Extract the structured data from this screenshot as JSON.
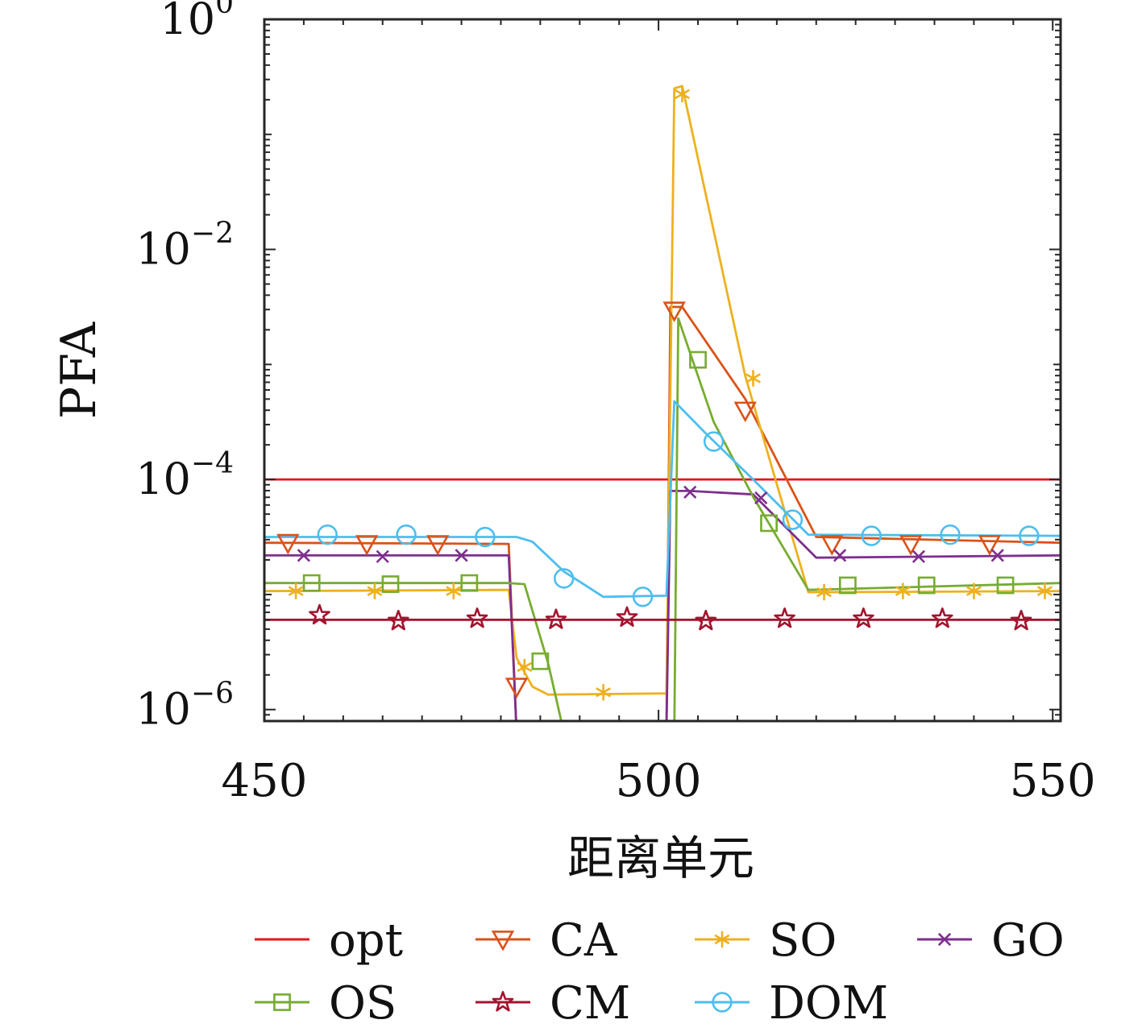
{
  "chart_data": {
    "type": "line",
    "xlabel": "距离单元",
    "ylabel": "PFA",
    "xlim": [
      450,
      551
    ],
    "ylim_log10": [
      -6.1,
      0
    ],
    "yscale": "log",
    "x_ticks": [
      450,
      500,
      550
    ],
    "x_tick_labels": [
      "450",
      "500",
      "550"
    ],
    "y_ticks": [
      {
        "exp": 0,
        "base": "10",
        "sup": "0"
      },
      {
        "exp": -2,
        "base": "10",
        "sup": "−2"
      },
      {
        "exp": -4,
        "base": "10",
        "sup": "−4"
      },
      {
        "exp": -6,
        "base": "10",
        "sup": "−6"
      }
    ],
    "legend_position": "bottom",
    "series": [
      {
        "name": "opt",
        "color": "#e8141b",
        "marker": "none",
        "points": [
          [
            450,
            -4.0
          ],
          [
            551,
            -4.0
          ]
        ]
      },
      {
        "name": "CA",
        "color": "#d95319",
        "marker": "triangle-down",
        "points": [
          [
            450,
            -4.55
          ],
          [
            481,
            -4.56
          ],
          [
            482,
            -6.2
          ],
          [
            501,
            -6.2
          ],
          [
            501.5,
            -2.5
          ],
          [
            503,
            -2.5
          ],
          [
            511,
            -3.3
          ],
          [
            520,
            -4.5
          ],
          [
            551,
            -4.55
          ]
        ],
        "markers": [
          [
            453,
            -4.55
          ],
          [
            463,
            -4.56
          ],
          [
            472,
            -4.56
          ],
          [
            482,
            -5.8
          ],
          [
            502,
            -2.53
          ],
          [
            511,
            -3.4
          ],
          [
            522,
            -4.56
          ],
          [
            532,
            -4.56
          ],
          [
            542,
            -4.56
          ]
        ]
      },
      {
        "name": "SO",
        "color": "#edb120",
        "marker": "asterisk",
        "points": [
          [
            450,
            -4.97
          ],
          [
            481,
            -4.96
          ],
          [
            482,
            -5.55
          ],
          [
            484,
            -5.8
          ],
          [
            486,
            -5.87
          ],
          [
            501,
            -5.86
          ],
          [
            502,
            -0.6
          ],
          [
            503,
            -0.58
          ],
          [
            511,
            -3.1
          ],
          [
            519,
            -4.98
          ],
          [
            551,
            -4.97
          ]
        ],
        "markers": [
          [
            454,
            -4.97
          ],
          [
            464,
            -4.97
          ],
          [
            474,
            -4.97
          ],
          [
            483,
            -5.63
          ],
          [
            493,
            -5.85
          ],
          [
            503,
            -0.65
          ],
          [
            512,
            -3.12
          ],
          [
            521,
            -4.98
          ],
          [
            531,
            -4.97
          ],
          [
            540,
            -4.97
          ],
          [
            549,
            -4.97
          ]
        ]
      },
      {
        "name": "GO",
        "color": "#7e2f8e",
        "marker": "x",
        "points": [
          [
            450,
            -4.66
          ],
          [
            481,
            -4.66
          ],
          [
            482,
            -6.2
          ],
          [
            501,
            -6.2
          ],
          [
            501.5,
            -4.1
          ],
          [
            504,
            -4.1
          ],
          [
            512,
            -4.13
          ],
          [
            520,
            -4.68
          ],
          [
            551,
            -4.66
          ]
        ],
        "markers": [
          [
            455,
            -4.66
          ],
          [
            465,
            -4.67
          ],
          [
            475,
            -4.66
          ],
          [
            504,
            -4.11
          ],
          [
            513,
            -4.16
          ],
          [
            523,
            -4.66
          ],
          [
            533,
            -4.67
          ],
          [
            543,
            -4.66
          ]
        ]
      },
      {
        "name": "OS",
        "color": "#77ac30",
        "marker": "square",
        "points": [
          [
            450,
            -4.9
          ],
          [
            481,
            -4.9
          ],
          [
            483,
            -4.91
          ],
          [
            486,
            -5.6
          ],
          [
            488,
            -6.2
          ],
          [
            502,
            -6.2
          ],
          [
            502.5,
            -2.6
          ],
          [
            507,
            -3.5
          ],
          [
            512,
            -4.15
          ],
          [
            519,
            -4.96
          ],
          [
            551,
            -4.9
          ]
        ],
        "markers": [
          [
            456,
            -4.9
          ],
          [
            466,
            -4.91
          ],
          [
            476,
            -4.9
          ],
          [
            485,
            -5.58
          ],
          [
            505,
            -2.96
          ],
          [
            514,
            -4.38
          ],
          [
            524,
            -4.92
          ],
          [
            534,
            -4.92
          ],
          [
            544,
            -4.92
          ]
        ]
      },
      {
        "name": "CM",
        "color": "#a2142f",
        "marker": "star",
        "points": [
          [
            450,
            -5.22
          ],
          [
            551,
            -5.22
          ]
        ],
        "markers": [
          [
            457,
            -5.18
          ],
          [
            467,
            -5.23
          ],
          [
            477,
            -5.21
          ],
          [
            487,
            -5.22
          ],
          [
            496,
            -5.2
          ],
          [
            506,
            -5.23
          ],
          [
            516,
            -5.21
          ],
          [
            526,
            -5.21
          ],
          [
            536,
            -5.21
          ],
          [
            546,
            -5.23
          ]
        ]
      },
      {
        "name": "DOM",
        "color": "#4dbeee",
        "marker": "circle",
        "points": [
          [
            450,
            -4.5
          ],
          [
            482,
            -4.5
          ],
          [
            484,
            -4.54
          ],
          [
            488,
            -4.8
          ],
          [
            493,
            -5.02
          ],
          [
            501,
            -5.01
          ],
          [
            502,
            -3.32
          ],
          [
            506,
            -3.6
          ],
          [
            512,
            -4.0
          ],
          [
            519,
            -4.48
          ],
          [
            551,
            -4.49
          ]
        ],
        "markers": [
          [
            458,
            -4.48
          ],
          [
            468,
            -4.48
          ],
          [
            478,
            -4.5
          ],
          [
            488,
            -4.86
          ],
          [
            498,
            -5.02
          ],
          [
            507,
            -3.67
          ],
          [
            517,
            -4.35
          ],
          [
            527,
            -4.49
          ],
          [
            537,
            -4.48
          ],
          [
            547,
            -4.49
          ]
        ]
      }
    ]
  }
}
